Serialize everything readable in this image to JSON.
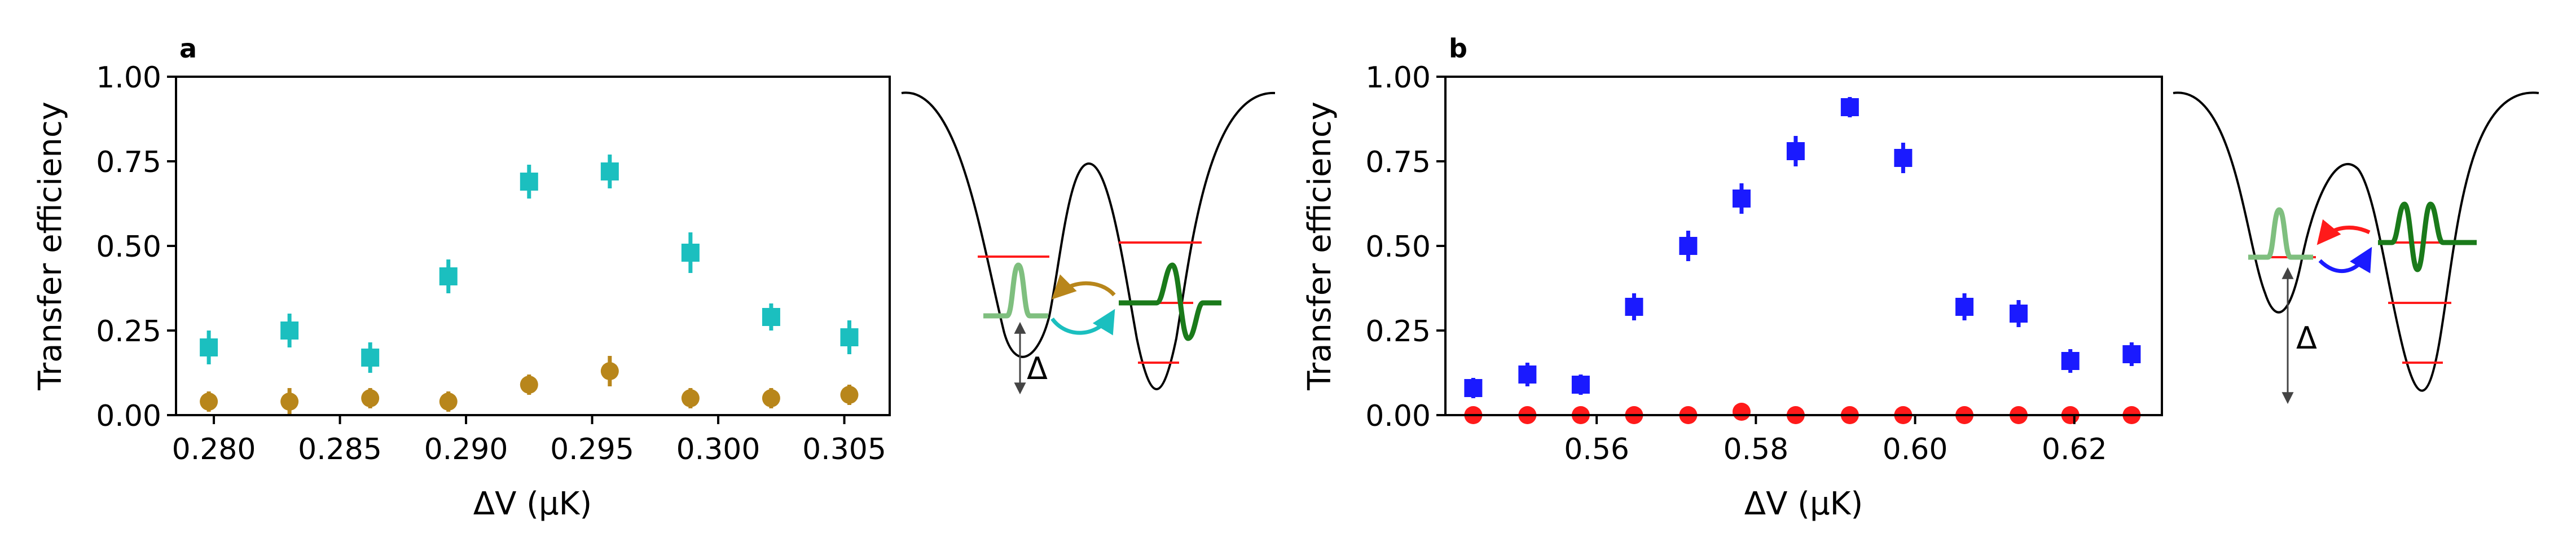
{
  "chart_data": [
    {
      "type": "scatter",
      "panel_label": "a",
      "xlabel": "ΔV (μK)",
      "ylabel": "Transfer efficiency",
      "xlim": [
        0.2785,
        0.3068
      ],
      "ylim": [
        0,
        1
      ],
      "xticks": [
        0.28,
        0.285,
        0.29,
        0.295,
        0.3,
        0.305
      ],
      "xtick_labels": [
        "0.280",
        "0.285",
        "0.290",
        "0.295",
        "0.300",
        "0.305"
      ],
      "yticks": [
        0,
        0.25,
        0.5,
        0.75,
        1.0
      ],
      "ytick_labels": [
        "0.00",
        "0.25",
        "0.50",
        "0.75",
        "1.00"
      ],
      "series": [
        {
          "name": "cyan squares",
          "color": "#1bbfbf",
          "marker": "square",
          "x": [
            0.2798,
            0.283,
            0.2862,
            0.2893,
            0.2925,
            0.2957,
            0.2989,
            0.3021,
            0.3052
          ],
          "y": [
            0.2,
            0.25,
            0.17,
            0.41,
            0.69,
            0.72,
            0.48,
            0.29,
            0.23
          ],
          "err": [
            0.05,
            0.05,
            0.045,
            0.05,
            0.05,
            0.05,
            0.06,
            0.04,
            0.05
          ]
        },
        {
          "name": "gold circles",
          "color": "#b8861b",
          "marker": "circle",
          "x": [
            0.2798,
            0.283,
            0.2862,
            0.2893,
            0.2925,
            0.2957,
            0.2989,
            0.3021,
            0.3052
          ],
          "y": [
            0.04,
            0.04,
            0.05,
            0.04,
            0.09,
            0.13,
            0.05,
            0.05,
            0.06
          ],
          "err": [
            0.03,
            0.04,
            0.03,
            0.03,
            0.03,
            0.045,
            0.03,
            0.03,
            0.03
          ]
        }
      ],
      "inset": {
        "delta_label": "Δ",
        "level_color": "#ff1a1a",
        "ground_color": "#7fbf7f",
        "excited_color": "#1a7a1a",
        "arrow_colors": [
          "#b8861b",
          "#1bbfbf"
        ]
      }
    },
    {
      "type": "scatter",
      "panel_label": "b",
      "xlabel": "ΔV (μK)",
      "ylabel": "Transfer efficiency",
      "xlim": [
        0.541,
        0.631
      ],
      "ylim": [
        0,
        1
      ],
      "xticks": [
        0.56,
        0.58,
        0.6,
        0.62
      ],
      "xtick_labels": [
        "0.56",
        "0.58",
        "0.60",
        "0.62"
      ],
      "yticks": [
        0,
        0.25,
        0.5,
        0.75,
        1.0
      ],
      "ytick_labels": [
        "0.00",
        "0.25",
        "0.50",
        "0.75",
        "1.00"
      ],
      "series": [
        {
          "name": "blue squares",
          "color": "#1a1aff",
          "marker": "square",
          "x": [
            0.5445,
            0.5513,
            0.558,
            0.5647,
            0.5715,
            0.5782,
            0.585,
            0.5918,
            0.5985,
            0.6062,
            0.613,
            0.6195,
            0.6272
          ],
          "y": [
            0.08,
            0.12,
            0.09,
            0.32,
            0.5,
            0.64,
            0.78,
            0.91,
            0.76,
            0.32,
            0.3,
            0.16,
            0.18
          ],
          "err": [
            0.03,
            0.035,
            0.03,
            0.04,
            0.045,
            0.045,
            0.045,
            0.03,
            0.045,
            0.04,
            0.04,
            0.035,
            0.035
          ]
        },
        {
          "name": "red circles",
          "color": "#ff1a1a",
          "marker": "circle",
          "x": [
            0.5445,
            0.5513,
            0.558,
            0.5647,
            0.5715,
            0.5782,
            0.585,
            0.5918,
            0.5985,
            0.6062,
            0.613,
            0.6195,
            0.6272
          ],
          "y": [
            0.0,
            0.0,
            0.0,
            0.0,
            0.0,
            0.01,
            0.0,
            0.0,
            0.0,
            0.0,
            0.0,
            0.0,
            0.0
          ],
          "err": [
            0,
            0,
            0,
            0,
            0,
            0,
            0,
            0,
            0,
            0,
            0,
            0,
            0
          ]
        }
      ],
      "inset": {
        "delta_label": "Δ",
        "level_color": "#ff1a1a",
        "ground_color": "#7fbf7f",
        "excited_color": "#1a7a1a",
        "arrow_colors": [
          "#ff1a1a",
          "#1a1aff"
        ]
      }
    }
  ]
}
